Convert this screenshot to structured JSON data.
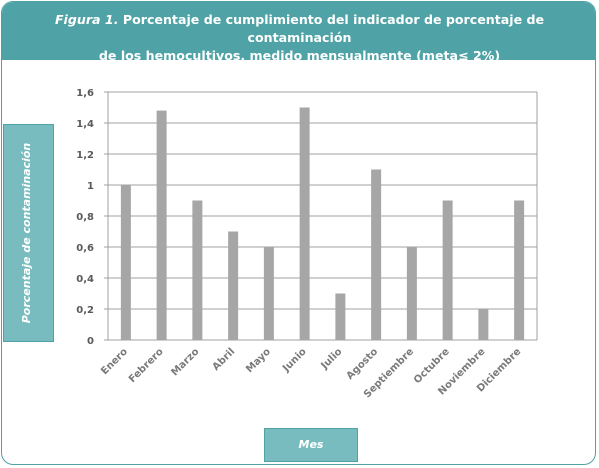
{
  "title": {
    "figure_label": "Figura 1.",
    "line1_rest": " Porcentaje de cumplimiento del indicador de porcentaje de contaminación",
    "line2": "de los hemocultivos, medido mensualmente (meta≤ 2%)"
  },
  "colors": {
    "accent": "#4fa3a6",
    "label_box": "#79bcc0",
    "bar": "#a6a6a6",
    "grid": "#a0a0a0"
  },
  "chart_data": {
    "type": "bar",
    "title": "Figura 1. Porcentaje de cumplimiento del indicador de porcentaje de contaminación de los hemocultivos, medido mensualmente (meta≤ 2%)",
    "xlabel": "Mes",
    "ylabel": "Porcentaje de contaminación",
    "ylim": [
      0,
      1.6
    ],
    "yticks": [
      "0",
      "0,2",
      "0,4",
      "0,6",
      "0,8",
      "1",
      "1,2",
      "1,4",
      "1,6"
    ],
    "grid": true,
    "categories": [
      "Enero",
      "Febrero",
      "Marzo",
      "Abril",
      "Mayo",
      "Junio",
      "Julio",
      "Agosto",
      "Septiembre",
      "Octubre",
      "Noviembre",
      "Diciembre"
    ],
    "values": [
      1.0,
      1.48,
      0.9,
      0.7,
      0.6,
      1.5,
      0.3,
      1.1,
      0.6,
      0.9,
      0.2,
      0.9
    ]
  }
}
